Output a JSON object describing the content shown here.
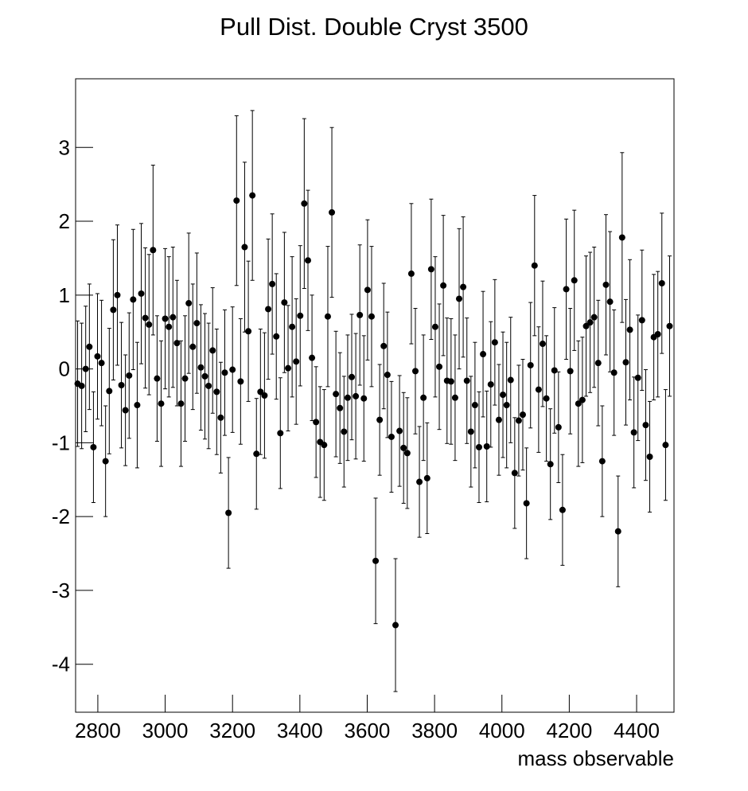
{
  "chart_data": {
    "type": "errorbar",
    "title": "Pull Dist. Double Cryst 3500",
    "x_label": "mass observable",
    "color": "#000000",
    "xlim": [
      2734,
      4511
    ],
    "ylim": [
      -4.65,
      3.93
    ],
    "xticks": [
      2800,
      3000,
      3200,
      3400,
      3600,
      3800,
      4000,
      4200,
      4400
    ],
    "yticks": [
      -4,
      -3,
      -2,
      -1,
      0,
      1,
      2,
      3
    ],
    "x": [
      2740,
      2752,
      2764,
      2775,
      2787,
      2799,
      2811,
      2823,
      2834,
      2846,
      2858,
      2870,
      2882,
      2893,
      2905,
      2917,
      2929,
      2941,
      2952,
      2964,
      2976,
      2988,
      3000,
      3011,
      3023,
      3035,
      3047,
      3059,
      3070,
      3082,
      3094,
      3106,
      3118,
      3129,
      3141,
      3153,
      3165,
      3177,
      3188,
      3200,
      3212,
      3224,
      3236,
      3247,
      3259,
      3271,
      3283,
      3295,
      3306,
      3318,
      3330,
      3342,
      3354,
      3365,
      3377,
      3389,
      3401,
      3413,
      3424,
      3436,
      3448,
      3460,
      3472,
      3483,
      3495,
      3507,
      3519,
      3531,
      3542,
      3554,
      3566,
      3578,
      3590,
      3601,
      3613,
      3625,
      3637,
      3649,
      3660,
      3672,
      3684,
      3696,
      3708,
      3719,
      3731,
      3743,
      3755,
      3767,
      3778,
      3790,
      3802,
      3814,
      3826,
      3837,
      3849,
      3861,
      3873,
      3885,
      3896,
      3908,
      3920,
      3932,
      3944,
      3955,
      3967,
      3979,
      3991,
      4003,
      4014,
      4026,
      4038,
      4050,
      4062,
      4073,
      4085,
      4097,
      4109,
      4121,
      4132,
      4144,
      4156,
      4168,
      4180,
      4191,
      4203,
      4215,
      4227,
      4239,
      4250,
      4262,
      4274,
      4286,
      4298,
      4309,
      4321,
      4333,
      4345,
      4357,
      4368,
      4380,
      4392,
      4404,
      4416,
      4427,
      4439,
      4451,
      4463,
      4475,
      4486,
      4498
    ],
    "values": [
      -0.2,
      -0.23,
      0,
      0.3,
      -1.06,
      0.17,
      0.08,
      -1.25,
      -0.3,
      0.8,
      1.0,
      -0.22,
      -0.56,
      -0.09,
      0.94,
      -0.49,
      1.02,
      0.69,
      0.6,
      1.61,
      -0.13,
      -0.47,
      0.68,
      0.57,
      0.7,
      0.35,
      -0.47,
      -0.13,
      0.89,
      0.3,
      0.62,
      0.02,
      -0.1,
      -0.23,
      0.25,
      -0.31,
      -0.66,
      -0.05,
      -1.95,
      -0.01,
      2.28,
      -0.17,
      1.65,
      0.51,
      2.35,
      -1.15,
      -0.31,
      -0.36,
      0.81,
      1.15,
      0.44,
      -0.87,
      0.9,
      0.01,
      0.57,
      0.1,
      0.72,
      2.24,
      1.47,
      0.15,
      -0.72,
      -0.99,
      -1.03,
      0.71,
      2.12,
      -0.34,
      -0.53,
      -0.85,
      -0.39,
      -0.11,
      -0.37,
      0.73,
      -0.4,
      1.07,
      0.71,
      -2.6,
      -0.69,
      0.31,
      -0.08,
      -0.92,
      -3.47,
      -0.84,
      -1.07,
      -1.14,
      1.29,
      -0.03,
      -1.53,
      -0.39,
      -1.48,
      1.35,
      0.57,
      0.03,
      1.13,
      -0.16,
      -0.17,
      -0.39,
      0.95,
      1.11,
      -0.16,
      -0.85,
      -0.49,
      -1.06,
      0.2,
      -1.05,
      -0.21,
      0.36,
      -0.69,
      -0.35,
      -0.49,
      -0.15,
      -1.41,
      -0.7,
      -0.62,
      -1.82,
      0.05,
      1.4,
      -0.28,
      0.34,
      -0.4,
      -1.29,
      -0.02,
      -0.79,
      -1.91,
      1.08,
      -0.03,
      1.2,
      -0.47,
      -0.42,
      0.58,
      0.63,
      0.7,
      0.08,
      -1.25,
      1.14,
      0.91,
      -0.05,
      -2.2,
      1.78,
      0.09,
      0.53,
      -0.86,
      -0.12,
      0.66,
      -0.76,
      -1.19,
      0.43,
      0.47,
      1.16,
      -1.03,
      0.58
    ],
    "errors": [
      0.85,
      0.85,
      0.85,
      0.85,
      0.75,
      0.85,
      0.85,
      0.75,
      0.85,
      0.95,
      0.95,
      0.85,
      0.75,
      0.85,
      0.95,
      0.85,
      0.95,
      0.95,
      0.95,
      1.15,
      0.85,
      0.85,
      0.95,
      0.95,
      0.95,
      0.85,
      0.85,
      0.85,
      0.95,
      0.85,
      0.95,
      0.85,
      0.85,
      0.85,
      0.85,
      0.85,
      0.75,
      0.85,
      0.75,
      0.85,
      1.15,
      0.85,
      1.15,
      0.95,
      1.15,
      0.75,
      0.85,
      0.85,
      0.95,
      0.95,
      0.85,
      0.75,
      0.95,
      0.85,
      0.95,
      0.85,
      0.95,
      1.15,
      0.95,
      0.85,
      0.75,
      0.75,
      0.75,
      0.95,
      1.15,
      0.85,
      0.75,
      0.75,
      0.85,
      0.85,
      0.85,
      0.95,
      0.85,
      0.95,
      0.95,
      0.85,
      0.75,
      0.85,
      0.85,
      0.75,
      0.9,
      0.75,
      0.75,
      0.75,
      0.95,
      0.85,
      0.75,
      0.85,
      0.75,
      0.95,
      0.95,
      0.85,
      0.95,
      0.85,
      0.85,
      0.85,
      0.95,
      0.95,
      0.85,
      0.75,
      0.85,
      0.75,
      0.85,
      0.75,
      0.85,
      0.85,
      0.75,
      0.85,
      0.85,
      0.85,
      0.75,
      0.75,
      0.75,
      0.75,
      0.85,
      0.95,
      0.85,
      0.85,
      0.85,
      0.75,
      0.85,
      0.75,
      0.75,
      0.95,
      0.85,
      0.95,
      0.85,
      0.85,
      0.95,
      0.95,
      0.95,
      0.85,
      0.75,
      0.95,
      0.95,
      0.85,
      0.75,
      1.15,
      0.85,
      0.95,
      0.75,
      0.85,
      0.95,
      0.75,
      0.75,
      0.85,
      0.85,
      0.95,
      0.75,
      0.95
    ]
  }
}
